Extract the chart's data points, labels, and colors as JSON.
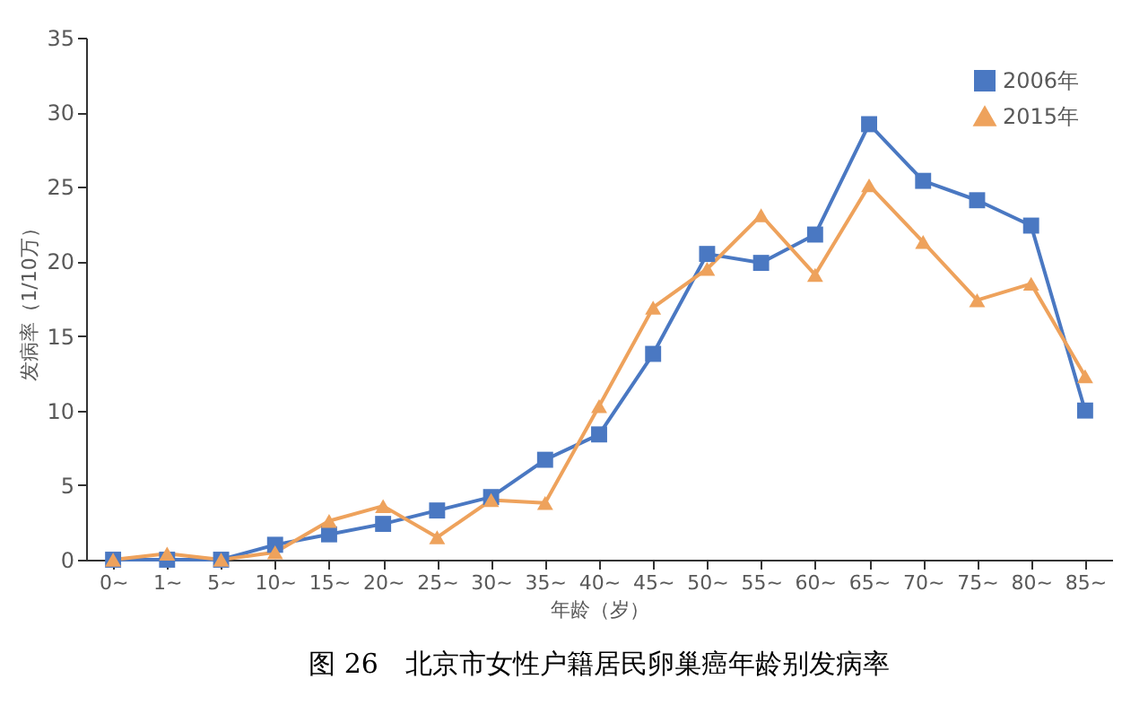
{
  "chart_data": {
    "type": "line",
    "title": "图 26　北京市女性户籍居民卵巢癌年龄别发病率",
    "xlabel": "年龄（岁）",
    "ylabel": "发病率（1/10万）",
    "categories": [
      "0~",
      "1~",
      "5~",
      "10~",
      "15~",
      "20~",
      "25~",
      "30~",
      "35~",
      "40~",
      "45~",
      "50~",
      "55~",
      "60~",
      "65~",
      "70~",
      "75~",
      "80~",
      "85~"
    ],
    "series": [
      {
        "name": "2006年",
        "color": "#4a78c2",
        "marker": "square",
        "values": [
          0,
          0,
          0,
          1.0,
          1.7,
          2.4,
          3.3,
          4.2,
          6.7,
          8.4,
          13.8,
          20.5,
          19.9,
          21.8,
          29.2,
          25.4,
          24.1,
          22.4,
          10.0
        ]
      },
      {
        "name": "2015年",
        "color": "#eea25c",
        "marker": "triangle",
        "values": [
          0,
          0.4,
          0,
          0.5,
          2.6,
          3.6,
          1.5,
          4.0,
          3.8,
          10.3,
          16.9,
          19.5,
          23.1,
          19.1,
          25.1,
          21.3,
          17.4,
          18.5,
          12.3
        ]
      }
    ],
    "ylim": [
      0,
      35
    ],
    "yticks": [
      0,
      5,
      10,
      15,
      20,
      25,
      30,
      35
    ],
    "grid": false,
    "legend": "top right",
    "line_style": "solid"
  }
}
